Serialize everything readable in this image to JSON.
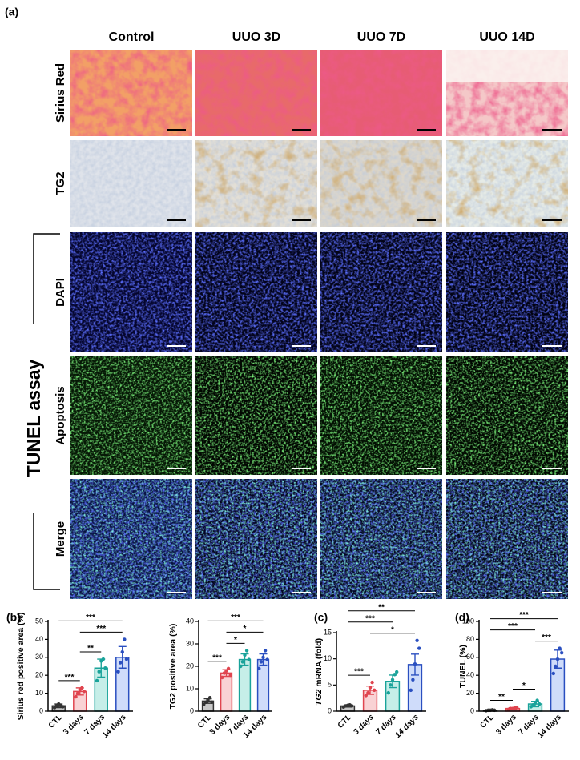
{
  "figure": {
    "panel_label": "(a)",
    "columns": [
      "Control",
      "UUO 3D",
      "UUO 7D",
      "UUO 14D"
    ],
    "rows": [
      "Sirius Red",
      "TG2",
      "DAPI",
      "Apoptosis",
      "Merge"
    ],
    "group_label": "TUNEL assay"
  },
  "chart_data": [
    {
      "type": "bar",
      "panel": "(b)",
      "ylabel": "Sirius red positive area (%)",
      "categories": [
        "CTL",
        "3 days",
        "7 days",
        "14 days"
      ],
      "values": [
        3,
        11,
        24,
        30
      ],
      "errors": [
        1,
        2,
        5,
        6
      ],
      "points": [
        [
          2,
          3,
          4,
          3,
          2.5
        ],
        [
          8,
          10,
          12,
          13,
          11
        ],
        [
          17,
          22,
          28,
          29,
          24
        ],
        [
          22,
          27,
          33,
          40,
          29
        ]
      ],
      "colors": [
        "#333333",
        "#e0454f",
        "#1aa39a",
        "#2a4fc0"
      ],
      "fill_colors": [
        "#c8c8c8",
        "#f9d2d4",
        "#c6eee8",
        "#cfdcfa"
      ],
      "ylim": [
        0,
        50
      ],
      "yticks": [
        0,
        10,
        20,
        30,
        40,
        50
      ],
      "annotations": [
        {
          "from": "CTL",
          "to": "3 days",
          "text": "***"
        },
        {
          "from": "3 days",
          "to": "7 days",
          "text": "**"
        },
        {
          "from": "3 days",
          "to": "14 days",
          "text": "***"
        },
        {
          "from": "CTL",
          "to": "14 days",
          "text": "***"
        }
      ]
    },
    {
      "type": "bar",
      "ylabel": "TG2 positive area (%)",
      "categories": [
        "CTL",
        "3 days",
        "7 days",
        "14 days"
      ],
      "values": [
        4.5,
        17,
        23,
        23
      ],
      "errors": [
        1,
        1.5,
        2.5,
        2.5
      ],
      "points": [
        [
          3,
          4,
          5,
          6,
          4
        ],
        [
          15,
          17,
          18,
          19,
          16
        ],
        [
          20,
          22,
          25,
          27,
          23
        ],
        [
          19,
          22,
          24,
          27,
          23
        ]
      ],
      "colors": [
        "#333333",
        "#e0454f",
        "#1aa39a",
        "#2a4fc0"
      ],
      "fill_colors": [
        "#c8c8c8",
        "#f9d2d4",
        "#c6eee8",
        "#cfdcfa"
      ],
      "ylim": [
        0,
        40
      ],
      "yticks": [
        0,
        10,
        20,
        30,
        40
      ],
      "annotations": [
        {
          "from": "CTL",
          "to": "3 days",
          "text": "***"
        },
        {
          "from": "3 days",
          "to": "7 days",
          "text": "*"
        },
        {
          "from": "3 days",
          "to": "14 days",
          "text": "*"
        },
        {
          "from": "CTL",
          "to": "14 days",
          "text": "***"
        }
      ]
    },
    {
      "type": "bar",
      "panel": "(c)",
      "ylabel_italic": "TG2",
      "ylabel": "mRNA (fold)",
      "italic_categories": true,
      "categories": [
        "CTL",
        "3 days",
        "7 days",
        "14 days"
      ],
      "values": [
        1,
        4,
        5.7,
        8.9
      ],
      "errors": [
        0.2,
        0.8,
        1.2,
        2
      ],
      "points": [
        [
          0.8,
          1,
          1.1,
          1.2,
          1
        ],
        [
          3,
          3.5,
          4.5,
          5.5,
          4
        ],
        [
          3.5,
          5,
          6,
          7,
          7.5
        ],
        [
          4,
          6,
          9,
          13.5,
          12
        ]
      ],
      "colors": [
        "#333333",
        "#e0454f",
        "#1aa39a",
        "#2a4fc0"
      ],
      "fill_colors": [
        "#c8c8c8",
        "#f9d2d4",
        "#c6eee8",
        "#cfdcfa"
      ],
      "ylim": [
        0,
        15
      ],
      "yticks": [
        0,
        5,
        10,
        15
      ],
      "annotations": [
        {
          "from": "CTL",
          "to": "3 days",
          "text": "***"
        },
        {
          "from": "3 days",
          "to": "14 days",
          "text": "*"
        },
        {
          "from": "CTL",
          "to": "7 days",
          "text": "***"
        },
        {
          "from": "CTL",
          "to": "14 days",
          "text": "**"
        }
      ]
    },
    {
      "type": "bar",
      "panel": "(d)",
      "ylabel": "TUNEL (%)",
      "categories": [
        "CTL",
        "3 days",
        "7 days",
        "14 days"
      ],
      "values": [
        1,
        3,
        8,
        58
      ],
      "errors": [
        0.5,
        1,
        3,
        10
      ],
      "points": [
        [
          0.5,
          1,
          1,
          1.5,
          1
        ],
        [
          2,
          3,
          3,
          4,
          4
        ],
        [
          5,
          7,
          9,
          12,
          8
        ],
        [
          42,
          50,
          58,
          70,
          65
        ]
      ],
      "colors": [
        "#333333",
        "#e0454f",
        "#1aa39a",
        "#2a4fc0"
      ],
      "fill_colors": [
        "#c8c8c8",
        "#f9d2d4",
        "#c6eee8",
        "#cfdcfa"
      ],
      "ylim": [
        0,
        100
      ],
      "yticks": [
        0,
        20,
        40,
        60,
        80,
        100
      ],
      "annotations": [
        {
          "from": "CTL",
          "to": "3 days",
          "text": "**"
        },
        {
          "from": "3 days",
          "to": "7 days",
          "text": "*"
        },
        {
          "from": "7 days",
          "to": "14 days",
          "text": "***"
        },
        {
          "from": "CTL",
          "to": "7 days",
          "text": "***"
        },
        {
          "from": "CTL",
          "to": "14 days",
          "text": "***"
        }
      ]
    }
  ]
}
